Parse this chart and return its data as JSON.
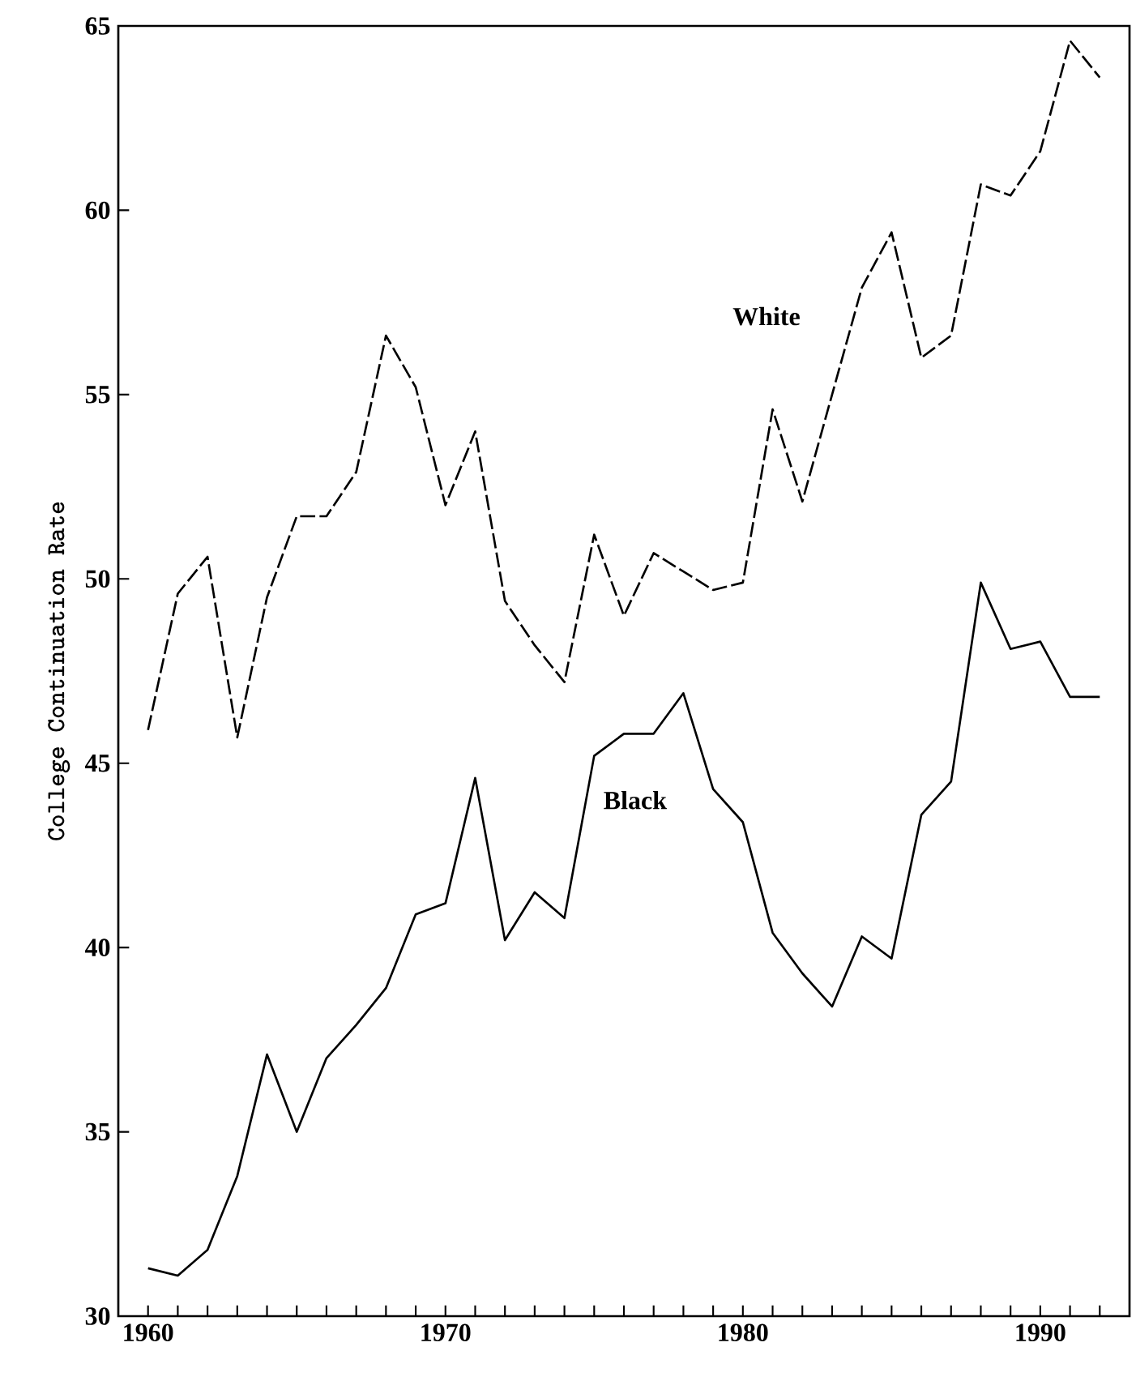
{
  "chart_data": {
    "type": "line",
    "ylabel": "College Continuation Rate",
    "x": [
      1960,
      1961,
      1962,
      1963,
      1964,
      1965,
      1966,
      1967,
      1968,
      1969,
      1970,
      1971,
      1972,
      1973,
      1974,
      1975,
      1976,
      1977,
      1978,
      1979,
      1980,
      1981,
      1982,
      1983,
      1984,
      1985,
      1986,
      1987,
      1988,
      1989,
      1990,
      1991,
      1992
    ],
    "series": [
      {
        "name": "White",
        "color": "#000000",
        "line_style": "dashed",
        "values": [
          45.9,
          49.6,
          50.6,
          45.7,
          49.5,
          51.7,
          51.7,
          52.9,
          56.6,
          55.2,
          52.0,
          54.0,
          49.4,
          48.2,
          47.2,
          51.2,
          49.0,
          50.7,
          50.2,
          49.7,
          49.9,
          54.6,
          52.1,
          55.0,
          57.9,
          59.4,
          56.0,
          56.6,
          60.7,
          60.4,
          61.6,
          64.6,
          63.6
        ]
      },
      {
        "name": "Black",
        "color": "#000000",
        "line_style": "solid",
        "values": [
          31.3,
          31.1,
          31.8,
          33.8,
          37.1,
          35.0,
          37.0,
          37.9,
          38.9,
          40.9,
          41.2,
          44.6,
          40.2,
          41.5,
          40.8,
          45.2,
          45.8,
          45.8,
          46.9,
          44.3,
          43.4,
          40.4,
          39.3,
          38.4,
          40.3,
          39.7,
          43.6,
          44.5,
          49.9,
          48.1,
          48.3,
          46.8,
          46.8
        ]
      }
    ],
    "xlim": [
      1959,
      1993
    ],
    "xticks": [
      1960,
      {
        "value": 1961,
        "label": null
      },
      {
        "value": 1962,
        "label": null
      },
      {
        "value": 1963,
        "label": null
      },
      {
        "value": 1964,
        "label": null
      },
      {
        "value": 1965,
        "label": null
      },
      {
        "value": 1966,
        "label": null
      },
      {
        "value": 1967,
        "label": null
      },
      {
        "value": 1968,
        "label": null
      },
      {
        "value": 1969,
        "label": null
      },
      1970,
      {
        "value": 1971,
        "label": null
      },
      {
        "value": 1972,
        "label": null
      },
      {
        "value": 1973,
        "label": null
      },
      {
        "value": 1974,
        "label": null
      },
      {
        "value": 1975,
        "label": null
      },
      {
        "value": 1976,
        "label": null
      },
      {
        "value": 1977,
        "label": null
      },
      {
        "value": 1978,
        "label": null
      },
      {
        "value": 1979,
        "label": null
      },
      1980,
      {
        "value": 1981,
        "label": null
      },
      {
        "value": 1982,
        "label": null
      },
      {
        "value": 1983,
        "label": null
      },
      {
        "value": 1984,
        "label": null
      },
      {
        "value": 1985,
        "label": null
      },
      {
        "value": 1986,
        "label": null
      },
      {
        "value": 1987,
        "label": null
      },
      {
        "value": 1988,
        "label": null
      },
      {
        "value": 1989,
        "label": null
      },
      1990,
      {
        "value": 1991,
        "label": null
      },
      {
        "value": 1992,
        "label": null
      }
    ],
    "ylim": [
      30,
      65
    ],
    "yticks": [
      30,
      35,
      40,
      45,
      50,
      55,
      60,
      65
    ],
    "grid": false,
    "legend": false,
    "marker": "none"
  }
}
